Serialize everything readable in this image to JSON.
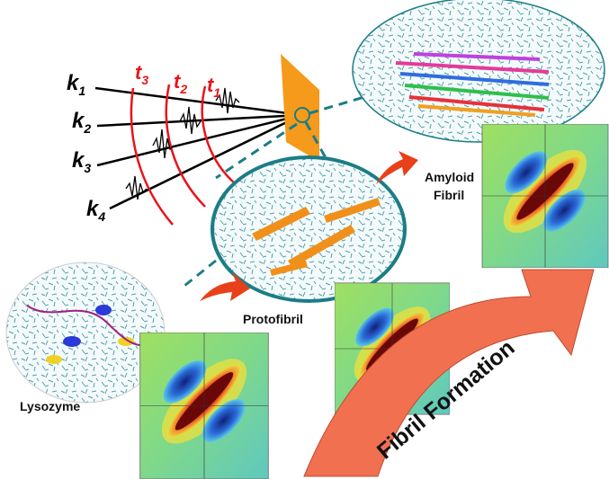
{
  "wave_vectors": [
    {
      "symbol": "k",
      "index": "1"
    },
    {
      "symbol": "k",
      "index": "2"
    },
    {
      "symbol": "k",
      "index": "3"
    },
    {
      "symbol": "k",
      "index": "4"
    }
  ],
  "times": [
    {
      "symbol": "t",
      "index": "3"
    },
    {
      "symbol": "t",
      "index": "2"
    },
    {
      "symbol": "t",
      "index": "1"
    }
  ],
  "stages": {
    "lysozyme": "Lysozyme",
    "protofibril": "Protofibril",
    "amyloid": [
      "Amyloid",
      "Fibril"
    ]
  },
  "arrow_label": "Fibril Formation"
}
